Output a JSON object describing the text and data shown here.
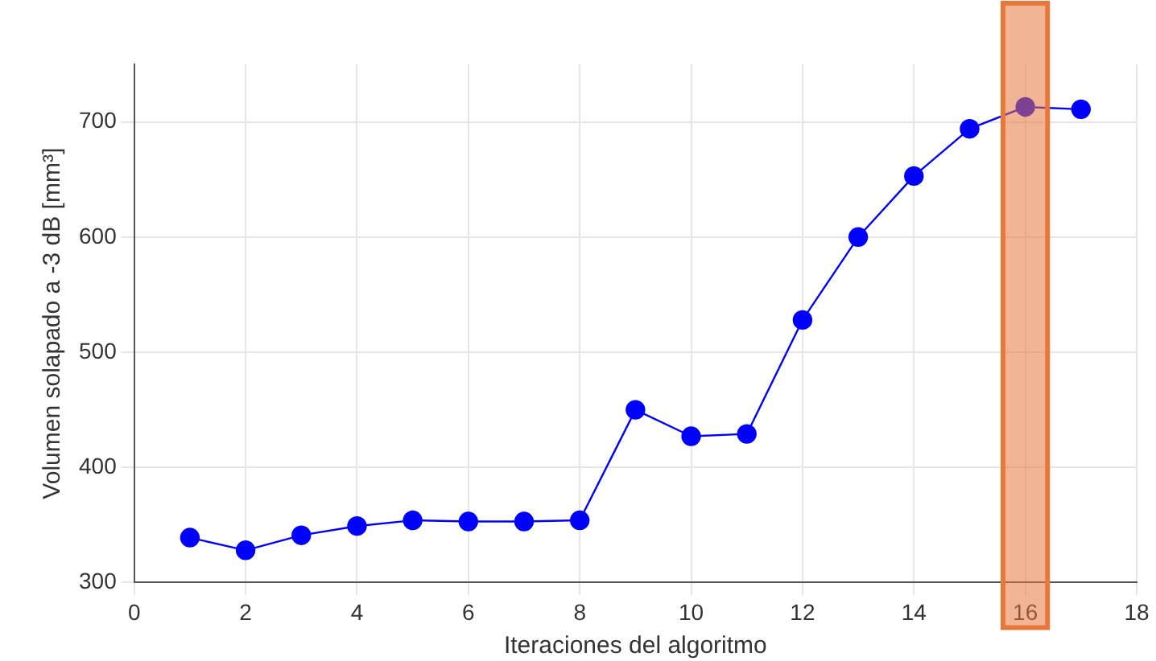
{
  "chart_data": {
    "type": "line",
    "xlabel": "Iteraciones del algoritmo",
    "ylabel": "Volumen solapado a -3 dB [mm³]",
    "x": [
      1,
      2,
      3,
      4,
      5,
      6,
      7,
      8,
      9,
      10,
      11,
      12,
      13,
      14,
      15,
      16,
      17
    ],
    "series": [
      {
        "color": "#0000ff",
        "values": [
          339,
          328,
          341,
          349,
          354,
          353,
          353,
          354,
          450,
          427,
          429,
          528,
          600,
          653,
          694,
          713,
          711
        ]
      }
    ],
    "xlim": [
      0,
      18
    ],
    "xticks": [
      0,
      2,
      4,
      6,
      8,
      10,
      12,
      14,
      16,
      18
    ],
    "ylim": [
      300,
      750
    ],
    "yticks": [
      300,
      400,
      500,
      600,
      700
    ],
    "grid": true,
    "marker": "circle",
    "line_style": "solid",
    "bands": [
      {
        "axis": "x",
        "from": 15.6,
        "to": 16.4,
        "color": "#e8783a"
      }
    ]
  }
}
